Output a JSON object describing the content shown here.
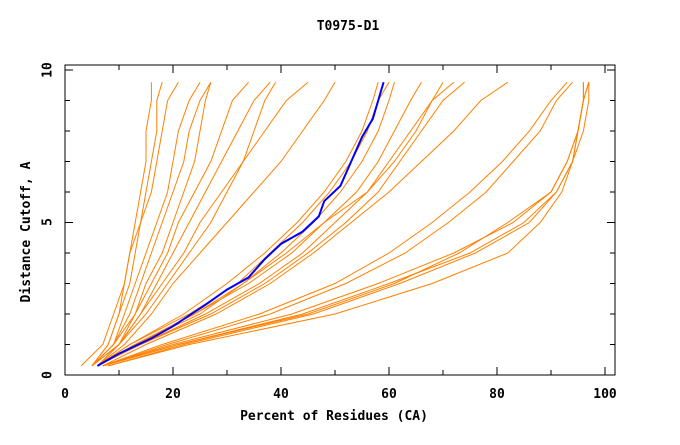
{
  "chart_data": {
    "type": "line",
    "title": "T0975-D1",
    "xlabel": "Percent of Residues (CA)",
    "ylabel": "Distance Cutoff, A",
    "xlim": [
      0,
      102
    ],
    "ylim": [
      0,
      10
    ],
    "x_ticks": [
      "0",
      "20",
      "40",
      "60",
      "80",
      "100"
    ],
    "y_ticks": [
      "0",
      "5",
      "10"
    ],
    "grid": false,
    "colors": {
      "highlight": "#0000ff",
      "others": "#ff8000"
    },
    "y_levels": [
      0.3,
      1,
      2,
      3,
      4,
      5,
      6,
      7,
      8,
      9,
      9.6
    ],
    "highlight_series": {
      "x": [
        6,
        10,
        16,
        20,
        26,
        30,
        34,
        37,
        40,
        44,
        47,
        48,
        51,
        53,
        55,
        57,
        58,
        59
      ],
      "y": [
        0.3,
        0.7,
        1.2,
        1.6,
        2.3,
        2.8,
        3.2,
        3.8,
        4.3,
        4.7,
        5.2,
        5.7,
        6.2,
        7.0,
        7.8,
        8.4,
        9.0,
        9.6
      ]
    },
    "other_series_x": [
      [
        5,
        8,
        10,
        11,
        12,
        13,
        14,
        15,
        15,
        16,
        16
      ],
      [
        5,
        8,
        10,
        12,
        13,
        14,
        15,
        16,
        17,
        17,
        18
      ],
      [
        3,
        7,
        9,
        11,
        12,
        14,
        16,
        17,
        18,
        19,
        21
      ],
      [
        5,
        9,
        11,
        13,
        15,
        17,
        19,
        20,
        21,
        23,
        25
      ],
      [
        5,
        9,
        12,
        14,
        16,
        18,
        20,
        22,
        23,
        25,
        27
      ],
      [
        5,
        9,
        13,
        15,
        18,
        20,
        22,
        24,
        25,
        26,
        27
      ],
      [
        5,
        10,
        13,
        16,
        19,
        21,
        24,
        27,
        29,
        31,
        34
      ],
      [
        6,
        10,
        14,
        17,
        20,
        23,
        26,
        29,
        32,
        35,
        38
      ],
      [
        5,
        10,
        15,
        19,
        23,
        27,
        30,
        33,
        35,
        37,
        39
      ],
      [
        6,
        10,
        14,
        18,
        22,
        25,
        29,
        33,
        37,
        41,
        45
      ],
      [
        6,
        11,
        16,
        20,
        25,
        30,
        35,
        40,
        44,
        48,
        50
      ],
      [
        6,
        12,
        22,
        30,
        37,
        43,
        48,
        52,
        55,
        57,
        58
      ],
      [
        6,
        12,
        23,
        32,
        38,
        44,
        49,
        53,
        56,
        58,
        60
      ],
      [
        6,
        13,
        25,
        33,
        40,
        46,
        51,
        55,
        58,
        60,
        61
      ],
      [
        6,
        13,
        24,
        33,
        41,
        48,
        54,
        58,
        61,
        64,
        66
      ],
      [
        6,
        14,
        26,
        36,
        44,
        50,
        56,
        61,
        65,
        68,
        70
      ],
      [
        6,
        14,
        27,
        37,
        45,
        52,
        58,
        62,
        66,
        70,
        74
      ],
      [
        7,
        15,
        28,
        38,
        46,
        53,
        60,
        66,
        72,
        77,
        82
      ],
      [
        6,
        13,
        24,
        34,
        42,
        48,
        56,
        60,
        64,
        68,
        72
      ],
      [
        7,
        18,
        36,
        50,
        60,
        68,
        75,
        81,
        86,
        90,
        93
      ],
      [
        7,
        19,
        38,
        52,
        63,
        71,
        78,
        83,
        88,
        91,
        94
      ],
      [
        7,
        20,
        42,
        58,
        72,
        83,
        90,
        93,
        95,
        96,
        97
      ],
      [
        7,
        21,
        44,
        60,
        75,
        85,
        91,
        94,
        96,
        97,
        97
      ],
      [
        8,
        22,
        46,
        62,
        76,
        86,
        91,
        94,
        95,
        96,
        97
      ],
      [
        8,
        23,
        50,
        68,
        82,
        88,
        92,
        94,
        95,
        96,
        96
      ],
      [
        7,
        21,
        45,
        61,
        73,
        82,
        90,
        93,
        95,
        96,
        96
      ]
    ]
  }
}
